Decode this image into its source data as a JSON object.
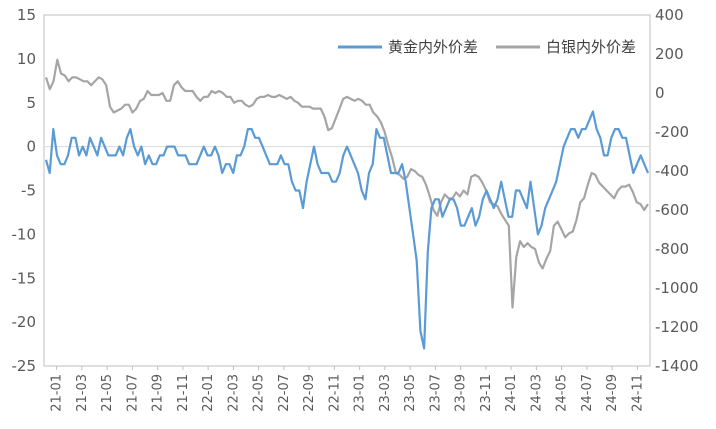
{
  "chart_data": {
    "type": "line",
    "title": "",
    "xlabel": "",
    "ylabel_left": "",
    "ylabel_right": "",
    "grid": false,
    "legend_position": "top-right",
    "x_ticks": [
      "21-01",
      "21-03",
      "21-05",
      "21-07",
      "21-09",
      "21-11",
      "22-01",
      "22-03",
      "22-05",
      "22-07",
      "22-09",
      "22-11",
      "23-01",
      "23-03",
      "23-05",
      "23-07",
      "23-09",
      "23-11",
      "24-01",
      "24-03",
      "24-05",
      "24-07",
      "24-09",
      "24-11"
    ],
    "y_left": {
      "ylim": [
        -25,
        15
      ],
      "ticks": [
        "-25",
        "-20",
        "-15",
        "-10",
        "-5",
        "0",
        "5",
        "10",
        "15"
      ]
    },
    "y_right": {
      "ylim": [
        -1400,
        400
      ],
      "ticks": [
        "-1400",
        "-1200",
        "-1000",
        "-800",
        "-600",
        "-400",
        "-200",
        "0",
        "200",
        "400"
      ]
    },
    "zero_line": 0,
    "series": [
      {
        "name": "黄金内外价差",
        "axis": "left",
        "color": "#5B9BD5",
        "values": [
          -1.5,
          -3,
          2,
          -1,
          -2,
          -2,
          -1,
          1,
          1,
          -1,
          0,
          -1,
          1,
          0,
          -1,
          1,
          0,
          -1,
          -1,
          -1,
          0,
          -1,
          1,
          2,
          0,
          -1,
          0,
          -2,
          -1,
          -2,
          -2,
          -1,
          -1,
          0,
          0,
          0,
          -1,
          -1,
          -1,
          -2,
          -2,
          -2,
          -1,
          0,
          -1,
          -1,
          0,
          -1,
          -3,
          -2,
          -2,
          -3,
          -1,
          -1,
          0,
          2,
          2,
          1,
          1,
          0,
          -1,
          -2,
          -2,
          -2,
          -1,
          -2,
          -2,
          -4,
          -5,
          -5,
          -7,
          -4,
          -2,
          0,
          -2,
          -3,
          -3,
          -3,
          -4,
          -4,
          -3,
          -1,
          0,
          -1,
          -2,
          -3,
          -5,
          -6,
          -3,
          -2,
          2,
          1,
          1,
          -1,
          -3,
          -3,
          -3,
          -2,
          -4,
          -7,
          -10,
          -13,
          -21,
          -23,
          -12,
          -7,
          -6,
          -6,
          -8,
          -7,
          -6,
          -6,
          -7,
          -9,
          -9,
          -8,
          -7,
          -9,
          -8,
          -6,
          -5,
          -6,
          -7,
          -6,
          -4,
          -6,
          -8,
          -8,
          -5,
          -5,
          -6,
          -7,
          -4,
          -7,
          -10,
          -9,
          -7,
          -6,
          -5,
          -4,
          -2,
          0,
          1,
          2,
          2,
          1,
          2,
          2,
          3,
          4,
          2,
          1,
          -1,
          -1,
          1,
          2,
          2,
          1,
          1,
          -1,
          -3,
          -2,
          -1,
          -2,
          -3
        ]
      },
      {
        "name": "白银内外价差",
        "axis": "right",
        "color": "#A5A5A5",
        "values": [
          80,
          20,
          60,
          170,
          100,
          90,
          60,
          80,
          80,
          70,
          60,
          60,
          40,
          60,
          80,
          70,
          40,
          -70,
          -100,
          -90,
          -80,
          -60,
          -60,
          -100,
          -80,
          -40,
          -30,
          10,
          -10,
          -10,
          -10,
          0,
          -40,
          -40,
          40,
          60,
          30,
          10,
          10,
          10,
          -20,
          -40,
          -20,
          -20,
          10,
          0,
          10,
          0,
          -20,
          -20,
          -50,
          -40,
          -40,
          -60,
          -70,
          -60,
          -30,
          -20,
          -20,
          -10,
          -20,
          -20,
          -10,
          -20,
          -30,
          -20,
          -40,
          -50,
          -70,
          -70,
          -70,
          -80,
          -80,
          -80,
          -120,
          -190,
          -180,
          -130,
          -80,
          -30,
          -20,
          -30,
          -40,
          -30,
          -40,
          -60,
          -60,
          -100,
          -120,
          -150,
          -200,
          -270,
          -330,
          -410,
          -420,
          -440,
          -430,
          -390,
          -400,
          -420,
          -430,
          -470,
          -530,
          -600,
          -630,
          -560,
          -520,
          -540,
          -540,
          -510,
          -530,
          -500,
          -520,
          -430,
          -420,
          -430,
          -460,
          -500,
          -560,
          -570,
          -580,
          -620,
          -650,
          -680,
          -1100,
          -840,
          -760,
          -790,
          -770,
          -790,
          -800,
          -870,
          -900,
          -850,
          -810,
          -680,
          -660,
          -700,
          -740,
          -720,
          -710,
          -650,
          -560,
          -540,
          -470,
          -410,
          -420,
          -460,
          -480,
          -500,
          -520,
          -540,
          -500,
          -480,
          -480,
          -470,
          -510,
          -560,
          -570,
          -600,
          -570
        ]
      }
    ]
  }
}
